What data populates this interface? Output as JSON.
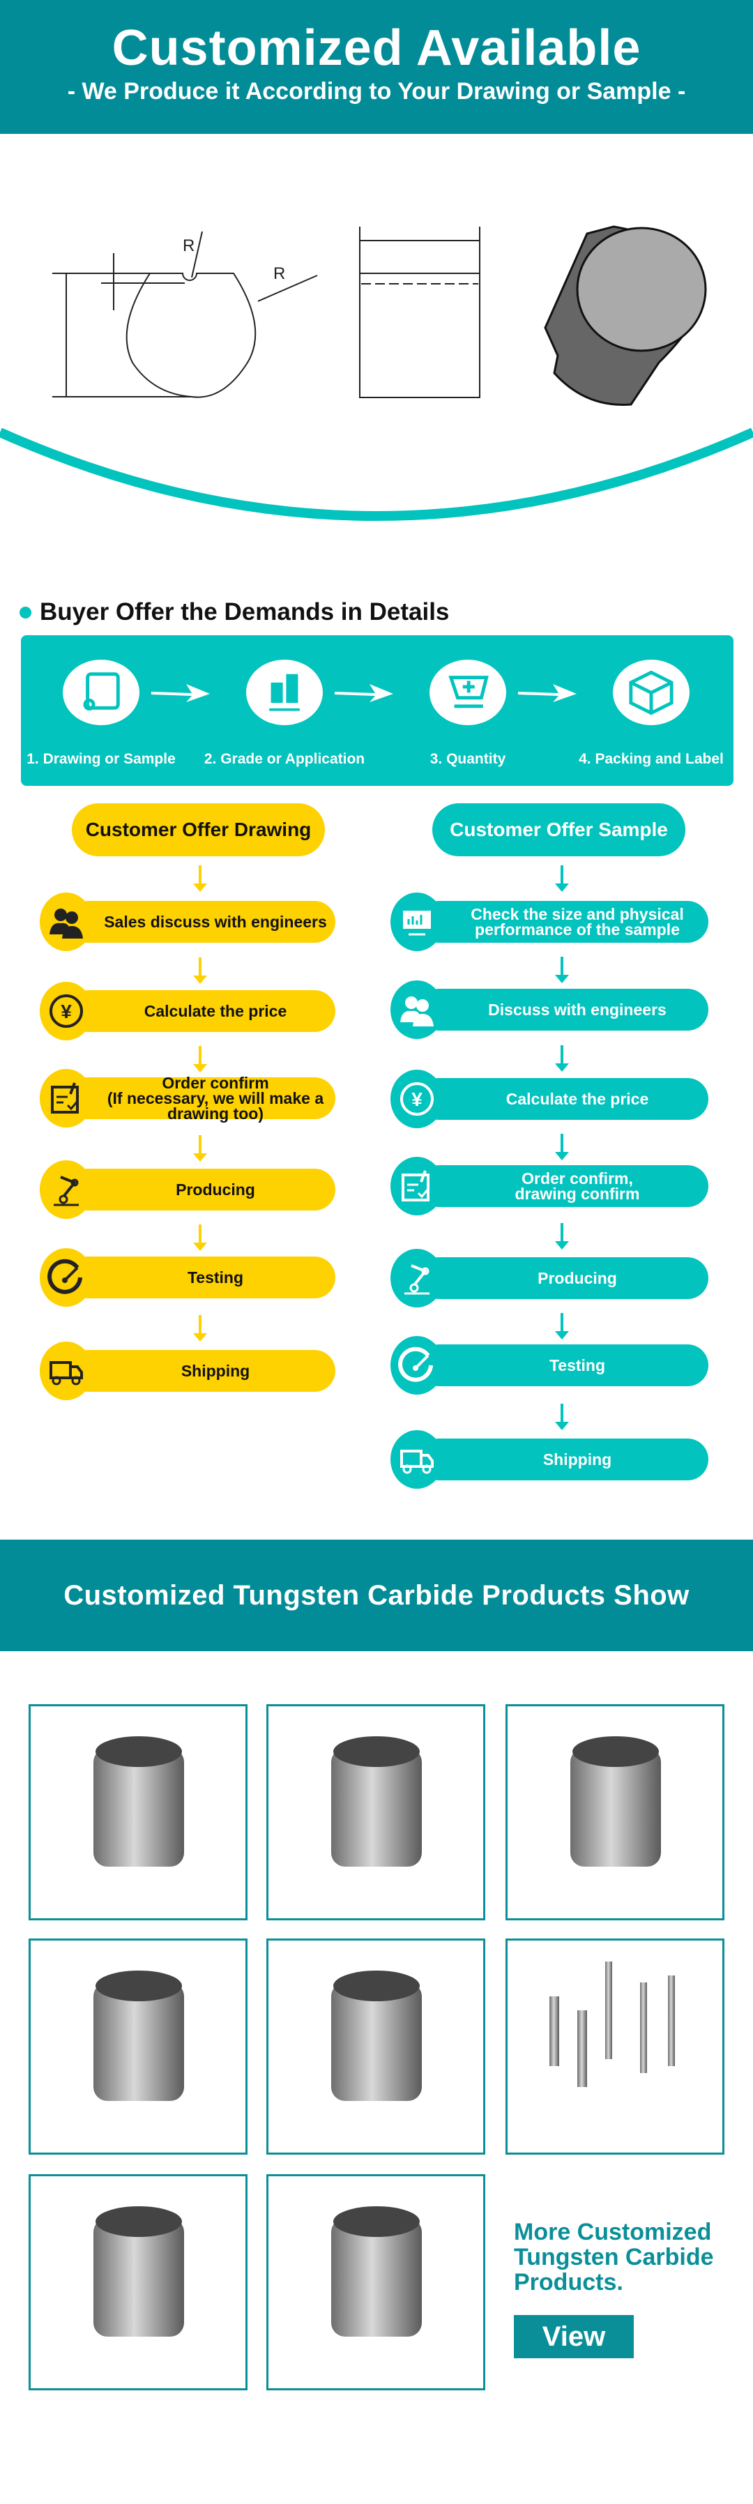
{
  "header": {
    "title": "Customized Available",
    "subtitle": "- We Produce it According to Your Drawing or Sample -"
  },
  "drawing_labels": {
    "r1": "R",
    "r2": "R"
  },
  "section": {
    "title": "Buyer Offer the Demands in Details"
  },
  "steps": [
    {
      "label": "1. Drawing or Sample",
      "icon": "blueprint-icon"
    },
    {
      "label": "2. Grade or Application",
      "icon": "bar-chart-icon"
    },
    {
      "label": "3. Quantity",
      "icon": "cart-icon"
    },
    {
      "label": "4. Packing and Label",
      "icon": "box-icon"
    }
  ],
  "drawing_flow": {
    "title": "Customer Offer Drawing",
    "rows": [
      {
        "label": "Sales discuss with engineers",
        "icon": "users-icon"
      },
      {
        "label": "Calculate the price",
        "icon": "yen-icon"
      },
      {
        "label": "Order confirm",
        "sub": "(If necessary, we will make a drawing too)",
        "icon": "checklist-icon"
      },
      {
        "label": "Producing",
        "icon": "robot-arm-icon"
      },
      {
        "label": "Testing",
        "icon": "gauge-icon"
      },
      {
        "label": "Shipping",
        "icon": "truck-icon"
      }
    ]
  },
  "sample_flow": {
    "title": "Customer Offer Sample",
    "rows": [
      {
        "label": "Check the size and physical",
        "sub": "performance of the sample",
        "icon": "monitor-chart-icon"
      },
      {
        "label": "Discuss with engineers",
        "icon": "users-icon"
      },
      {
        "label": "Calculate the price",
        "icon": "yen-icon"
      },
      {
        "label": "Order confirm,",
        "sub": "drawing confirm",
        "icon": "checklist-icon"
      },
      {
        "label": "Producing",
        "icon": "robot-arm-icon"
      },
      {
        "label": "Testing",
        "icon": "gauge-icon"
      },
      {
        "label": "Shipping",
        "icon": "truck-icon"
      }
    ]
  },
  "products": {
    "title": "Customized Tungsten Carbide Products Show",
    "more_lines": [
      "More Customized",
      "Tungsten Carbide",
      "Products."
    ],
    "view_label": "View"
  },
  "colors": {
    "dark_teal": "#018c97",
    "teal": "#02c3bd",
    "yellow": "#fed100"
  }
}
